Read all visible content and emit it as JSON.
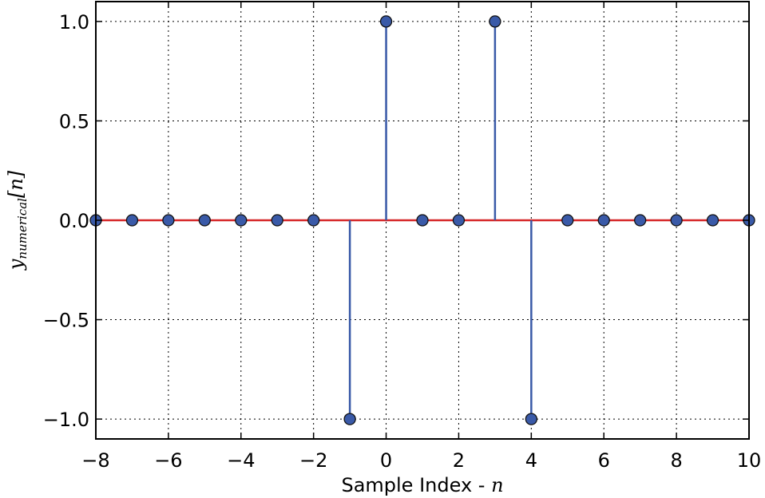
{
  "chart_data": {
    "type": "stem",
    "xlabel": "Sample Index - ",
    "xlabel_var": "n",
    "ylabel_main": "y",
    "ylabel_sub": "numerical",
    "ylabel_arg": "[n]",
    "xlim": [
      -8,
      10
    ],
    "ylim": [
      -1.1,
      1.1
    ],
    "x_ticks": [
      -8,
      -6,
      -4,
      -2,
      0,
      2,
      4,
      6,
      8,
      10
    ],
    "x_tick_labels": [
      "−8",
      "−6",
      "−4",
      "−2",
      "0",
      "2",
      "4",
      "6",
      "8",
      "10"
    ],
    "y_ticks": [
      1.0,
      0.5,
      0.0,
      -0.5,
      -1.0
    ],
    "y_tick_labels": [
      "1.0",
      "0.5",
      "0.0",
      "−0.5",
      "−1.0"
    ],
    "grid": true,
    "x": [
      -8,
      -7,
      -6,
      -5,
      -4,
      -3,
      -2,
      -1,
      0,
      1,
      2,
      3,
      4,
      5,
      6,
      7,
      8,
      9,
      10
    ],
    "y": [
      0,
      0,
      0,
      0,
      0,
      0,
      0,
      -1,
      1,
      0,
      0,
      1,
      -1,
      0,
      0,
      0,
      0,
      0,
      0
    ],
    "baseline": 0,
    "colors": {
      "stem": "#3a5aa8",
      "marker_fill": "#3a5aa8",
      "marker_edge": "#111111",
      "baseline": "#d62728"
    }
  }
}
